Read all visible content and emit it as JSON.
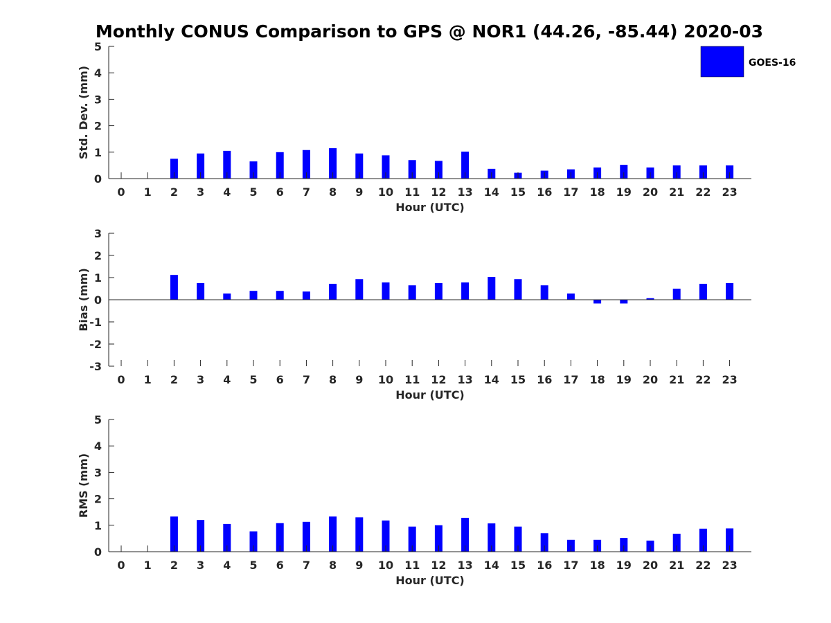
{
  "title": "Monthly CONUS Comparison to GPS @ NOR1 (44.26, -85.44) 2020-03",
  "legend": {
    "label": "GOES-16",
    "color": "#0000ff",
    "placement": "top-right"
  },
  "chart_data": [
    {
      "type": "bar",
      "xlabel": "Hour (UTC)",
      "ylabel": "Std. Dev. (mm)",
      "ylim": [
        0,
        5
      ],
      "yticks": [
        0,
        1,
        2,
        3,
        4,
        5
      ],
      "categories": [
        "0",
        "1",
        "2",
        "3",
        "4",
        "5",
        "6",
        "7",
        "8",
        "9",
        "10",
        "11",
        "12",
        "13",
        "14",
        "15",
        "16",
        "17",
        "18",
        "19",
        "20",
        "21",
        "22",
        "23"
      ],
      "series": [
        {
          "name": "GOES-16",
          "values": [
            null,
            null,
            0.75,
            0.95,
            1.05,
            0.65,
            1.0,
            1.08,
            1.15,
            0.95,
            0.88,
            0.7,
            0.67,
            1.02,
            0.37,
            0.22,
            0.3,
            0.35,
            0.42,
            0.52,
            0.42,
            0.5,
            0.5,
            0.5
          ]
        }
      ]
    },
    {
      "type": "bar",
      "xlabel": "Hour (UTC)",
      "ylabel": "Bias (mm)",
      "ylim": [
        -3,
        3
      ],
      "yticks": [
        -3,
        -2,
        -1,
        0,
        1,
        2,
        3
      ],
      "categories": [
        "0",
        "1",
        "2",
        "3",
        "4",
        "5",
        "6",
        "7",
        "8",
        "9",
        "10",
        "11",
        "12",
        "13",
        "14",
        "15",
        "16",
        "17",
        "18",
        "19",
        "20",
        "21",
        "22",
        "23"
      ],
      "series": [
        {
          "name": "GOES-16",
          "values": [
            null,
            null,
            1.12,
            0.75,
            0.28,
            0.4,
            0.4,
            0.37,
            0.72,
            0.93,
            0.78,
            0.65,
            0.75,
            0.78,
            1.03,
            0.93,
            0.65,
            0.28,
            -0.17,
            -0.17,
            0.07,
            0.5,
            0.72,
            0.75
          ]
        }
      ]
    },
    {
      "type": "bar",
      "xlabel": "Hour (UTC)",
      "ylabel": "RMS (mm)",
      "ylim": [
        0,
        5
      ],
      "yticks": [
        0,
        1,
        2,
        3,
        4,
        5
      ],
      "categories": [
        "0",
        "1",
        "2",
        "3",
        "4",
        "5",
        "6",
        "7",
        "8",
        "9",
        "10",
        "11",
        "12",
        "13",
        "14",
        "15",
        "16",
        "17",
        "18",
        "19",
        "20",
        "21",
        "22",
        "23"
      ],
      "series": [
        {
          "name": "GOES-16",
          "values": [
            null,
            null,
            1.33,
            1.2,
            1.05,
            0.77,
            1.08,
            1.13,
            1.33,
            1.3,
            1.18,
            0.95,
            1.0,
            1.28,
            1.07,
            0.95,
            0.7,
            0.45,
            0.45,
            0.52,
            0.42,
            0.68,
            0.87,
            0.88
          ]
        }
      ]
    }
  ]
}
